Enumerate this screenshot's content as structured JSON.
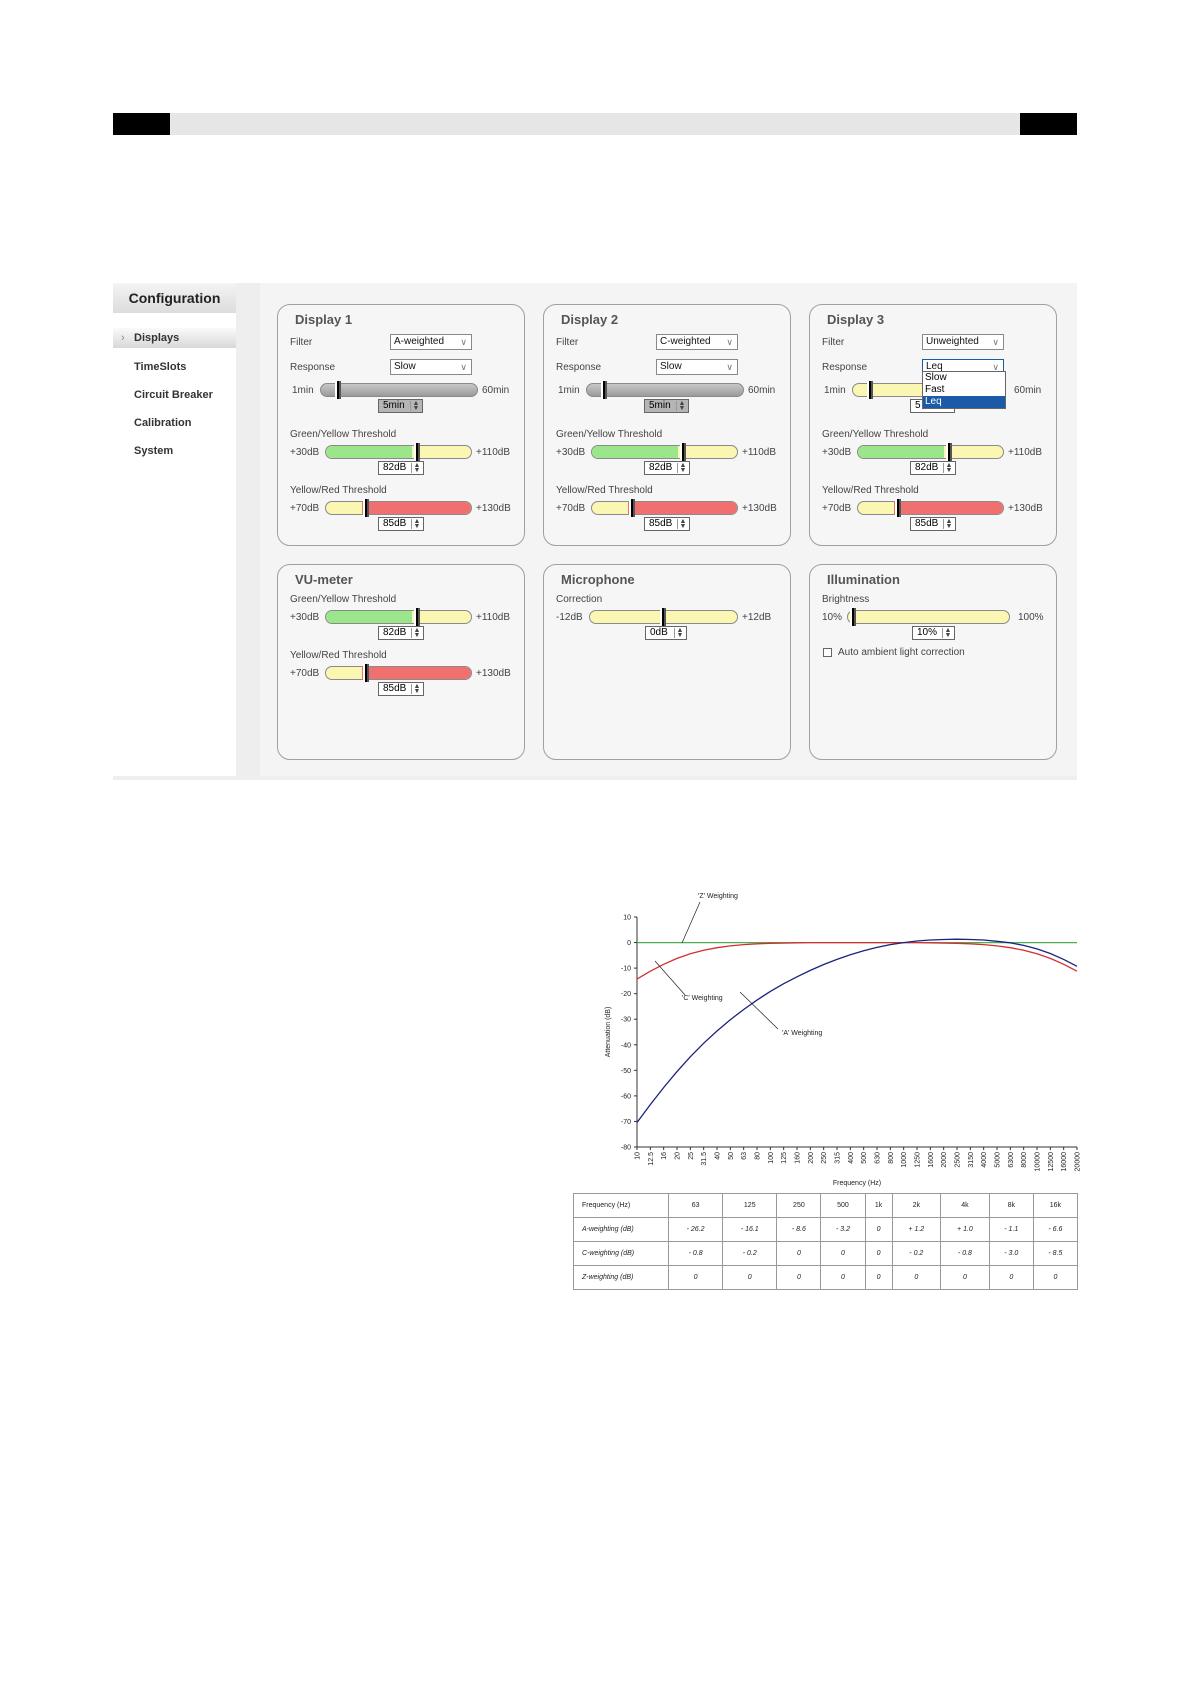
{
  "sidebar": {
    "title": "Configuration",
    "items": [
      {
        "label": "Displays"
      },
      {
        "label": "TimeSlots"
      },
      {
        "label": "Circuit Breaker"
      },
      {
        "label": "Calibration"
      },
      {
        "label": "System"
      }
    ]
  },
  "panels": {
    "display1": {
      "title": "Display 1",
      "filter_label": "Filter",
      "filter_value": "A-weighted",
      "response_label": "Response",
      "response_value": "Slow",
      "time_min": "1min",
      "time_max": "60min",
      "time_value": "5min",
      "gy_label": "Green/Yellow Threshold",
      "gy_min": "+30dB",
      "gy_max": "+110dB",
      "gy_value": "82dB",
      "yr_label": "Yellow/Red Threshold",
      "yr_min": "+70dB",
      "yr_max": "+130dB",
      "yr_value": "85dB"
    },
    "display2": {
      "title": "Display 2",
      "filter_label": "Filter",
      "filter_value": "C-weighted",
      "response_label": "Response",
      "response_value": "Slow",
      "time_min": "1min",
      "time_max": "60min",
      "time_value": "5min",
      "gy_label": "Green/Yellow Threshold",
      "gy_min": "+30dB",
      "gy_max": "+110dB",
      "gy_value": "82dB",
      "yr_label": "Yellow/Red Threshold",
      "yr_min": "+70dB",
      "yr_max": "+130dB",
      "yr_value": "85dB"
    },
    "display3": {
      "title": "Display 3",
      "filter_label": "Filter",
      "filter_value": "Unweighted",
      "response_label": "Response",
      "response_value": "Leq",
      "response_options": [
        "Slow",
        "Fast",
        "Leq"
      ],
      "time_min": "1min",
      "time_max": "60min",
      "time_value": "5",
      "gy_label": "Green/Yellow Threshold",
      "gy_min": "+30dB",
      "gy_max": "+110dB",
      "gy_value": "82dB",
      "yr_label": "Yellow/Red Threshold",
      "yr_min": "+70dB",
      "yr_max": "+130dB",
      "yr_value": "85dB"
    },
    "vu": {
      "title": "VU-meter",
      "gy_label": "Green/Yellow Threshold",
      "gy_min": "+30dB",
      "gy_max": "+110dB",
      "gy_value": "82dB",
      "yr_label": "Yellow/Red Threshold",
      "yr_min": "+70dB",
      "yr_max": "+130dB",
      "yr_value": "85dB"
    },
    "mic": {
      "title": "Microphone",
      "corr_label": "Correction",
      "corr_min": "-12dB",
      "corr_max": "+12dB",
      "corr_value": "0dB"
    },
    "illum": {
      "title": "Illumination",
      "bright_label": "Brightness",
      "bright_min": "10%",
      "bright_max": "100%",
      "bright_value": "10%",
      "auto_label": "Auto ambient light correction"
    }
  },
  "chart_data": {
    "type": "line",
    "xlabel": "Frequency (Hz)",
    "ylabel": "Attenuation (dB)",
    "ylim": [
      -80,
      10
    ],
    "yticks": [
      10,
      0,
      -10,
      -20,
      -30,
      -40,
      -50,
      -60,
      -70,
      -80
    ],
    "x": [
      "10",
      "12.5",
      "16",
      "20",
      "25",
      "31.5",
      "40",
      "50",
      "63",
      "80",
      "100",
      "125",
      "160",
      "200",
      "250",
      "315",
      "400",
      "500",
      "630",
      "800",
      "1000",
      "1250",
      "1600",
      "2000",
      "2500",
      "3150",
      "4000",
      "5000",
      "6300",
      "8000",
      "10000",
      "12500",
      "16000",
      "20000"
    ],
    "series": [
      {
        "name": "'A' Weighting",
        "color": "#1a237e",
        "values": [
          -70.4,
          -63.4,
          -56.7,
          -50.5,
          -44.7,
          -39.4,
          -34.6,
          -30.2,
          -26.2,
          -22.5,
          -19.1,
          -16.1,
          -13.4,
          -10.9,
          -8.6,
          -6.6,
          -4.8,
          -3.2,
          -1.9,
          -0.8,
          0,
          0.6,
          1.0,
          1.2,
          1.3,
          1.2,
          1.0,
          0.5,
          -0.1,
          -1.1,
          -2.5,
          -4.3,
          -6.6,
          -9.3
        ]
      },
      {
        "name": "'C' Weighting",
        "color": "#d32f2f",
        "values": [
          -14.3,
          -11.2,
          -8.5,
          -6.2,
          -4.4,
          -3.0,
          -2.0,
          -1.3,
          -0.8,
          -0.5,
          -0.3,
          -0.2,
          -0.1,
          0,
          0,
          0,
          0,
          0,
          0,
          0,
          0,
          0,
          -0.1,
          -0.2,
          -0.3,
          -0.5,
          -0.8,
          -1.3,
          -2.0,
          -3.0,
          -4.4,
          -6.2,
          -8.5,
          -11.2
        ]
      },
      {
        "name": "'Z' Weighting",
        "color": "#4caf50",
        "values": [
          0,
          0,
          0,
          0,
          0,
          0,
          0,
          0,
          0,
          0,
          0,
          0,
          0,
          0,
          0,
          0,
          0,
          0,
          0,
          0,
          0,
          0,
          0,
          0,
          0,
          0,
          0,
          0,
          0,
          0,
          0,
          0,
          0,
          0
        ]
      }
    ]
  },
  "table": {
    "header": [
      "Frequency (Hz)",
      "63",
      "125",
      "250",
      "500",
      "1k",
      "2k",
      "4k",
      "8k",
      "16k"
    ],
    "rows": [
      [
        "A-weighting (dB)",
        "- 26.2",
        "- 16.1",
        "- 8.6",
        "- 3.2",
        "0",
        "+ 1.2",
        "+ 1.0",
        "- 1.1",
        "- 6.6"
      ],
      [
        "C-weighting (dB)",
        "- 0.8",
        "- 0.2",
        "0",
        "0",
        "0",
        "- 0.2",
        "- 0.8",
        "- 3.0",
        "- 8.5"
      ],
      [
        "Z-weighting (dB)",
        "0",
        "0",
        "0",
        "0",
        "0",
        "0",
        "0",
        "0",
        "0"
      ]
    ]
  }
}
